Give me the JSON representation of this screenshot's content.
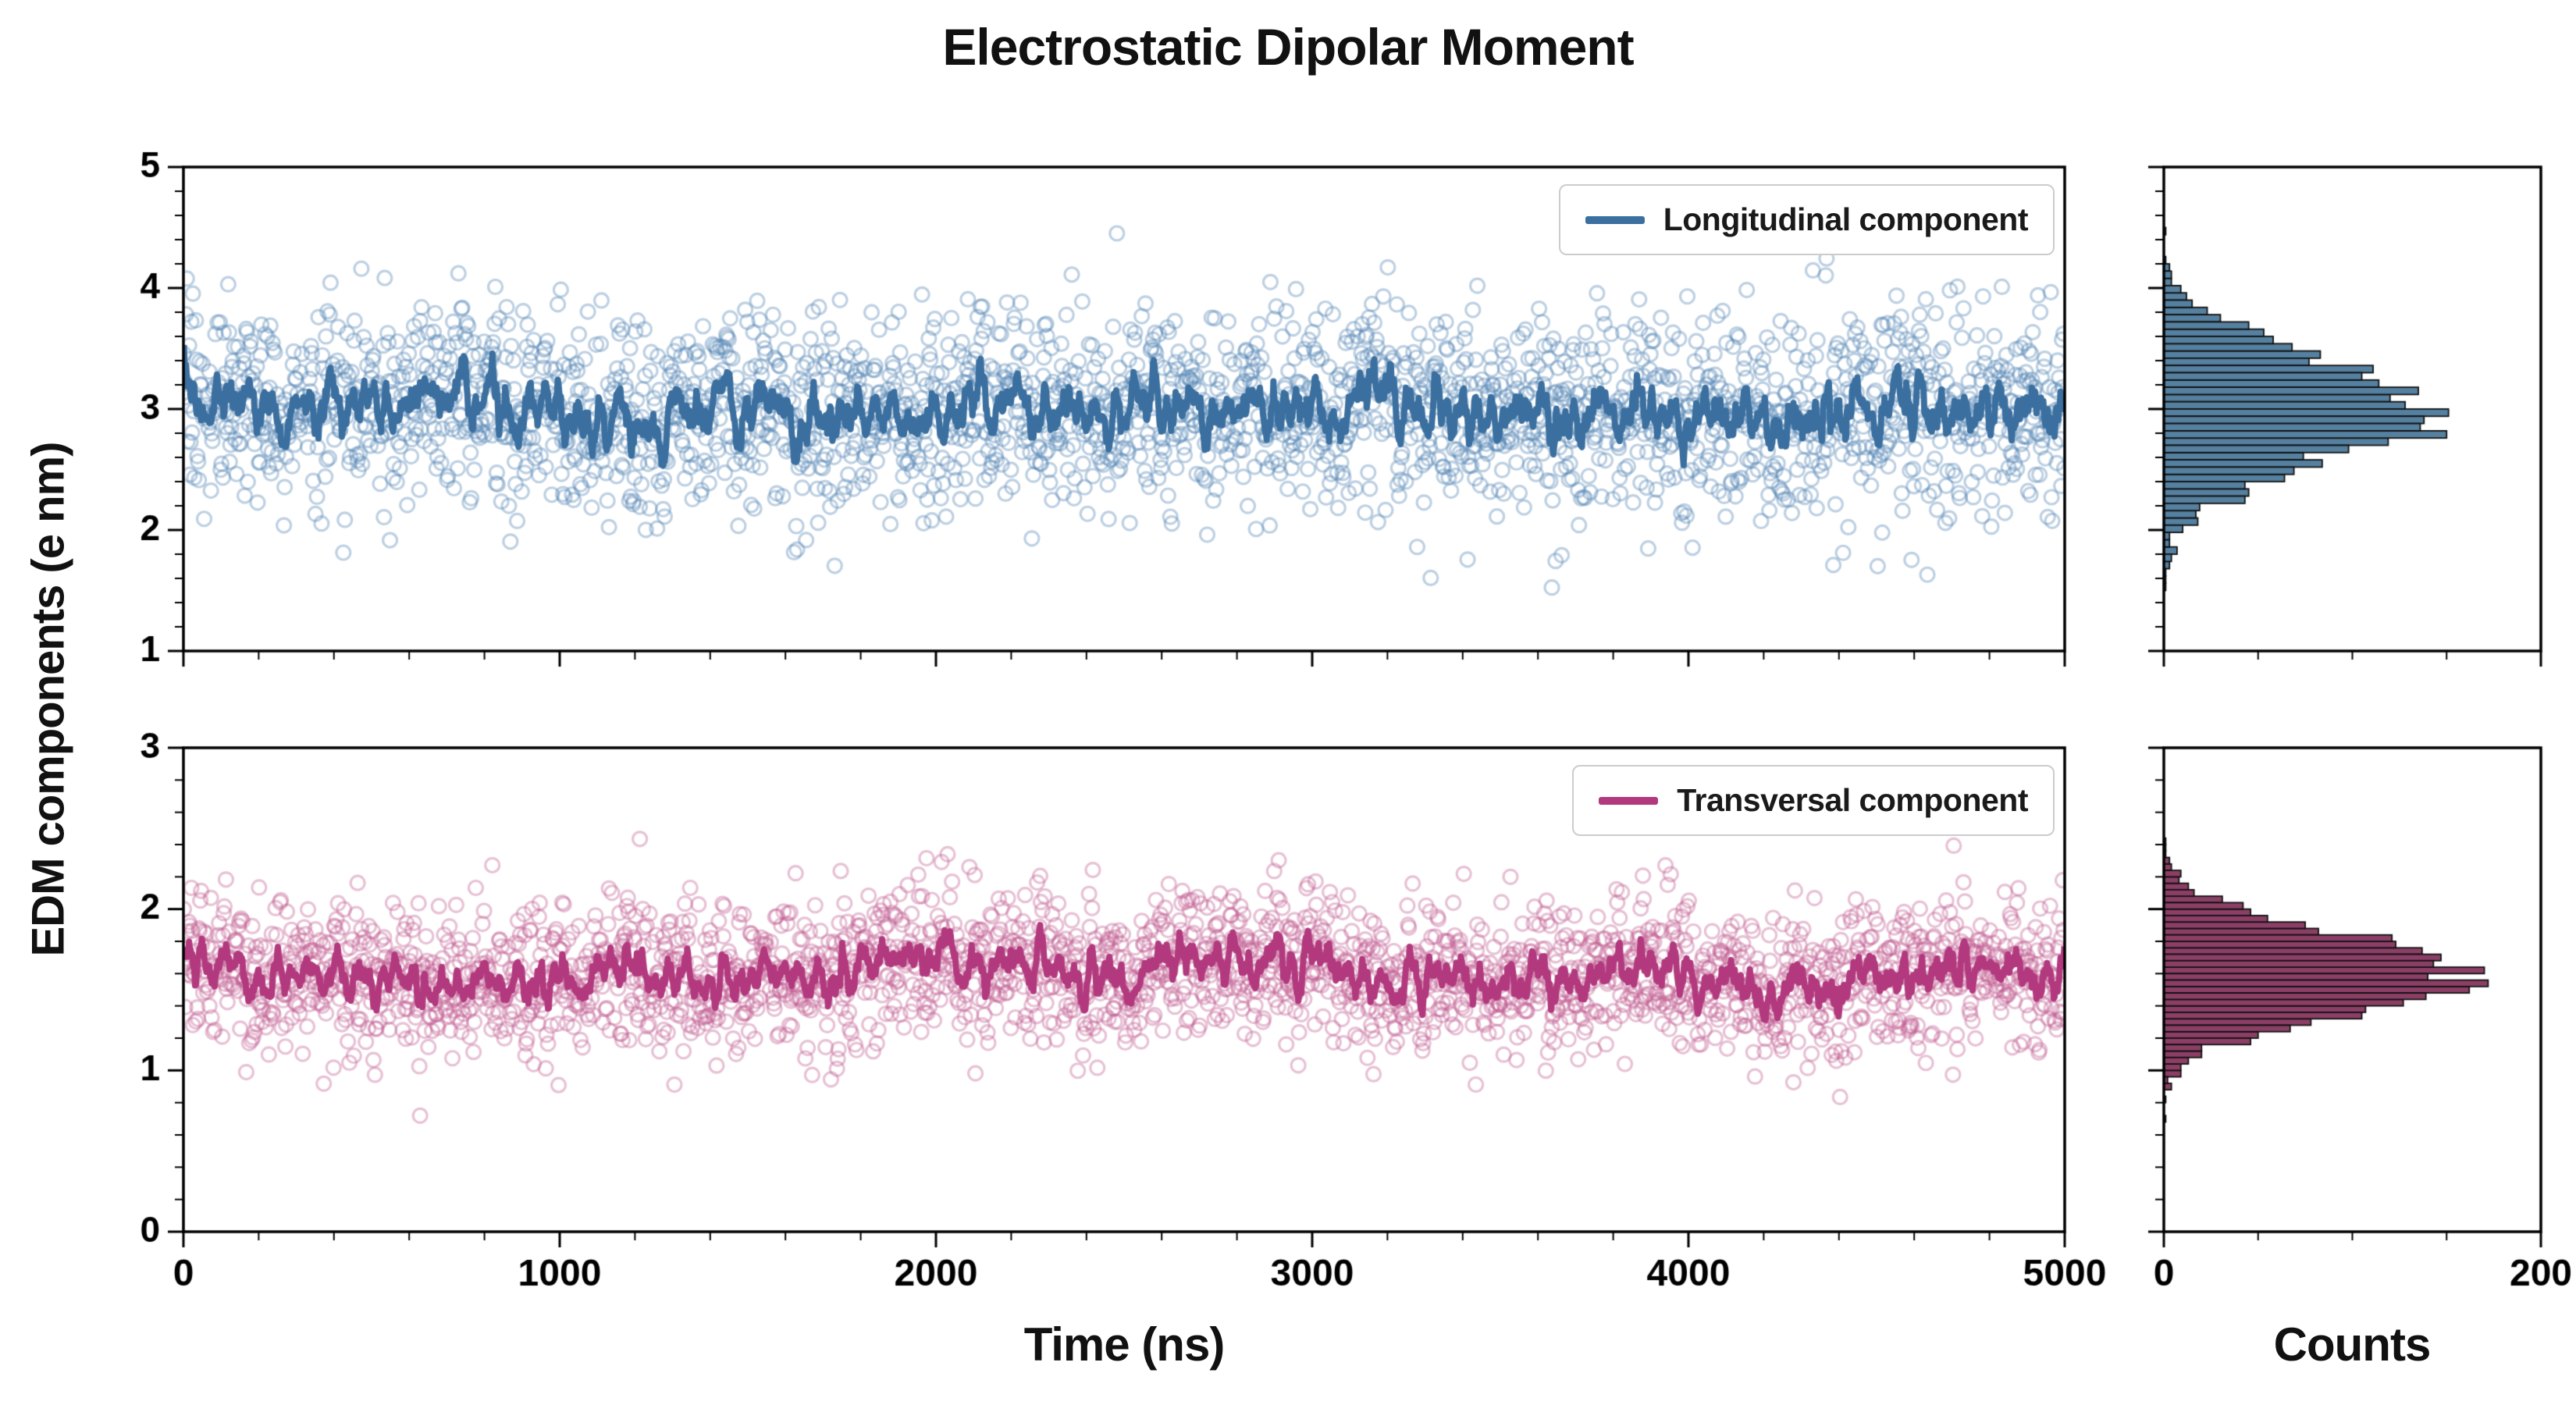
{
  "figure": {
    "title": "Electrostatic Dipolar Moment",
    "xlabel": "Time (ns)",
    "ylabel": "EDM components (e nm)",
    "hist_xlabel": "Counts"
  },
  "chart_data": {
    "type": "scatter",
    "description": "Two stacked time-series panels of EDM components (scatter points with running-mean line) and matching side histograms of value counts",
    "x_range": [
      0,
      5000
    ],
    "x_ticks": [
      0,
      1000,
      2000,
      3000,
      4000,
      5000
    ],
    "x_minor_step": 200,
    "hist_x_range": [
      0,
      200
    ],
    "hist_x_ticks": [
      0,
      200
    ],
    "hist_x_minor_step": 50,
    "panels": [
      {
        "name": "longitudinal",
        "legend_label": "Longitudinal component",
        "scatter_color": "#5585b5",
        "scatter_alpha": 0.38,
        "line_color": "#3a6f9f",
        "hist_color": "#55809f",
        "mean": 3.0,
        "std": 0.42,
        "n_points": 2500,
        "y_lim": [
          1,
          5
        ],
        "y_ticks": [
          1,
          2,
          3,
          4,
          5
        ],
        "y_minor_step": 0.2,
        "hist_bin_width": 0.06,
        "line_window": 9,
        "seed": 20240601,
        "modulation": [
          {
            "amp": 0.05,
            "period": 2600,
            "phase": 0.8
          },
          {
            "amp": 0.04,
            "period": 760,
            "phase": 2.1
          }
        ]
      },
      {
        "name": "transversal",
        "legend_label": "Transversal component",
        "scatter_color": "#c25e92",
        "scatter_alpha": 0.38,
        "line_color": "#b2397e",
        "hist_color": "#8c3f66",
        "mean": 1.6,
        "std": 0.24,
        "n_points": 2500,
        "y_lim": [
          0,
          3
        ],
        "y_ticks": [
          0,
          1,
          2,
          3
        ],
        "y_minor_step": 0.2,
        "hist_bin_width": 0.04,
        "line_window": 9,
        "seed": 777,
        "modulation": [
          {
            "amp": 0.06,
            "period": 3100,
            "phase": 2.6
          },
          {
            "amp": 0.04,
            "period": 900,
            "phase": 0.3
          }
        ]
      }
    ]
  }
}
